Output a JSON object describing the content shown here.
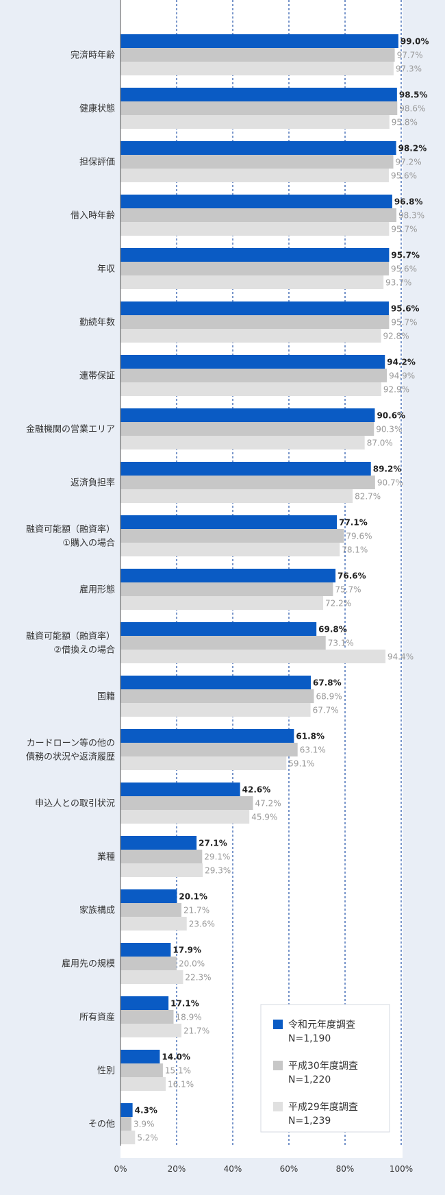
{
  "chart_data": {
    "type": "bar",
    "orientation": "horizontal",
    "categories": [
      "完済時年齢",
      "健康状態",
      "担保評価",
      "借入時年齢",
      "年収",
      "勤続年数",
      "連帯保証",
      "金融機関の営業エリア",
      "返済負担率",
      [
        "融資可能額（融資率）",
        "①購入の場合"
      ],
      "雇用形態",
      [
        "融資可能額（融資率）",
        "②借換えの場合"
      ],
      "国籍",
      [
        "カードローン等の他の",
        "債務の状況や返済履歴"
      ],
      "申込人との取引状況",
      "業種",
      "家族構成",
      "雇用先の規模",
      "所有資産",
      "性別",
      "その他"
    ],
    "series": [
      {
        "name": "令和元年度調査",
        "n_label": "N=1,190",
        "color": "#0a5bc4",
        "values": [
          99.0,
          98.5,
          98.2,
          96.8,
          95.7,
          95.6,
          94.2,
          90.6,
          89.2,
          77.1,
          76.6,
          69.8,
          67.8,
          61.8,
          42.6,
          27.1,
          20.1,
          17.9,
          17.1,
          14.0,
          4.3
        ]
      },
      {
        "name": "平成30年度調査",
        "n_label": "N=1,220",
        "color": "#c7c7c7",
        "values": [
          97.7,
          98.6,
          97.2,
          98.3,
          95.6,
          95.7,
          94.9,
          90.3,
          90.7,
          79.6,
          75.7,
          73.1,
          68.9,
          63.1,
          47.2,
          29.1,
          21.7,
          20.0,
          18.9,
          15.1,
          3.9
        ]
      },
      {
        "name": "平成29年度調査",
        "n_label": "N=1,239",
        "color": "#e0e0e0",
        "values": [
          97.3,
          95.8,
          95.6,
          95.7,
          93.7,
          92.8,
          92.9,
          87.0,
          82.7,
          78.1,
          72.2,
          94.4,
          67.7,
          59.1,
          45.9,
          29.3,
          23.6,
          22.3,
          21.7,
          16.1,
          5.2
        ]
      }
    ],
    "xlim": [
      0,
      100
    ],
    "xticks": [
      "0%",
      "20%",
      "40%",
      "60%",
      "80%",
      "100%"
    ],
    "value_suffix": "%",
    "grid": true,
    "legend": "bottom-right"
  }
}
